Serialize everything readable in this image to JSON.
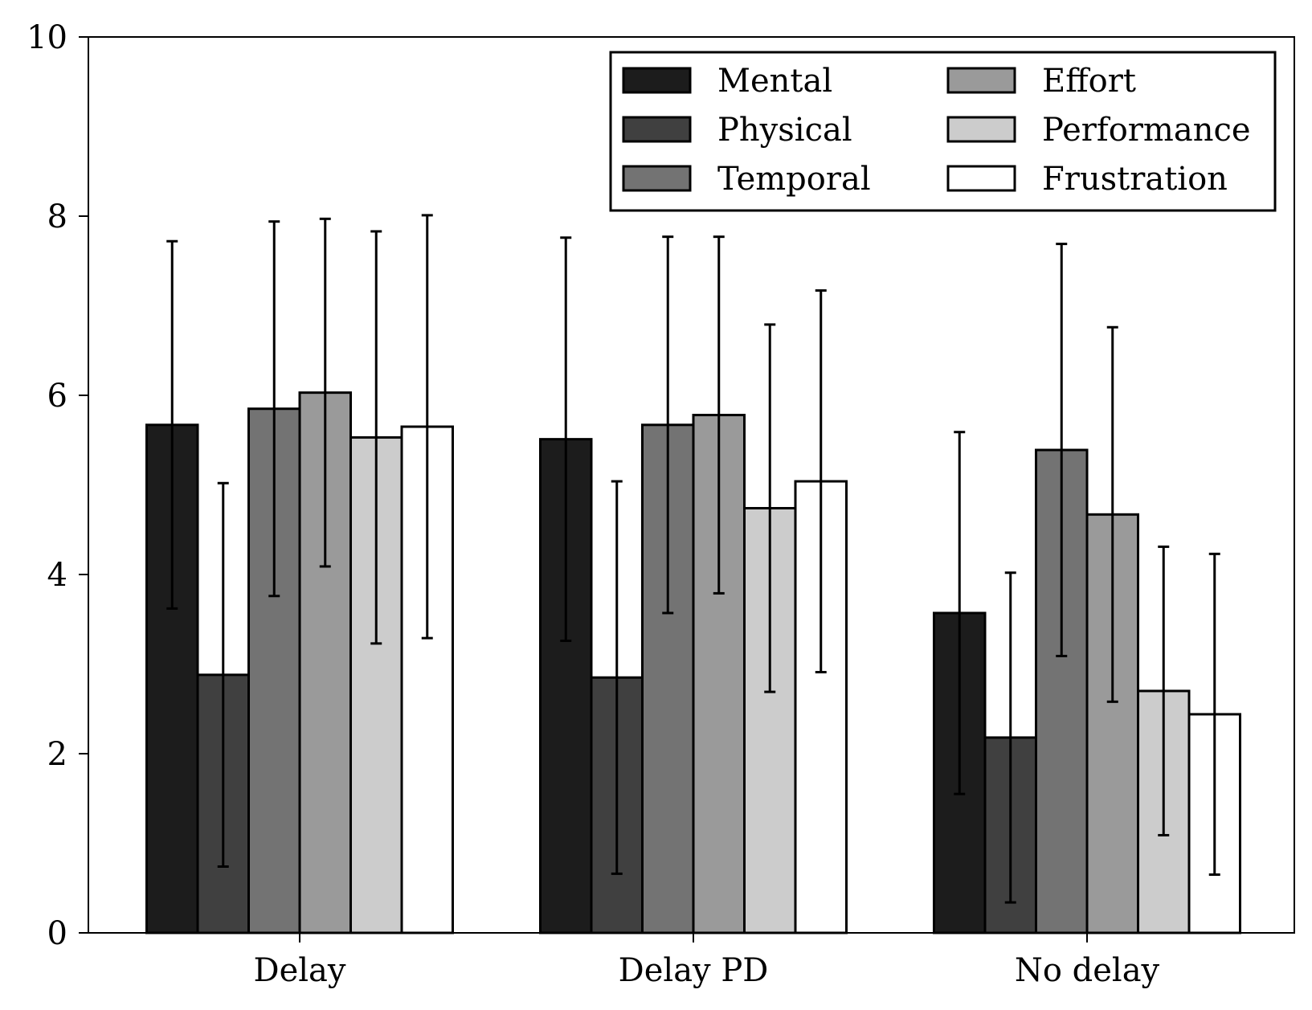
{
  "chart_data": {
    "type": "bar",
    "title": "",
    "xlabel": "",
    "ylabel": "",
    "categories": [
      "Delay",
      "Delay PD",
      "No delay"
    ],
    "ylim": [
      0,
      10
    ],
    "yticks": [
      0,
      2,
      4,
      6,
      8,
      10
    ],
    "grid": false,
    "legend_position": "top-right",
    "legend_columns": 2,
    "error_bars": true,
    "series": [
      {
        "name": "Mental",
        "color": "#1c1c1c",
        "values": [
          5.67,
          5.51,
          3.57
        ],
        "errors": [
          2.05,
          2.25,
          2.02
        ]
      },
      {
        "name": "Physical",
        "color": "#404040",
        "values": [
          2.88,
          2.85,
          2.18
        ],
        "errors": [
          2.14,
          2.19,
          1.84
        ]
      },
      {
        "name": "Temporal",
        "color": "#737373",
        "values": [
          5.85,
          5.67,
          5.39
        ],
        "errors": [
          2.09,
          2.1,
          2.3
        ]
      },
      {
        "name": "Effort",
        "color": "#9a9a9a",
        "values": [
          6.03,
          5.78,
          4.67
        ],
        "errors": [
          1.94,
          1.99,
          2.09
        ]
      },
      {
        "name": "Performance",
        "color": "#cccccc",
        "values": [
          5.53,
          4.74,
          2.7
        ],
        "errors": [
          2.3,
          2.05,
          1.61
        ]
      },
      {
        "name": "Frustration",
        "color": "#ffffff",
        "values": [
          5.65,
          5.04,
          2.44
        ],
        "errors": [
          2.36,
          2.13,
          1.79
        ]
      }
    ]
  }
}
